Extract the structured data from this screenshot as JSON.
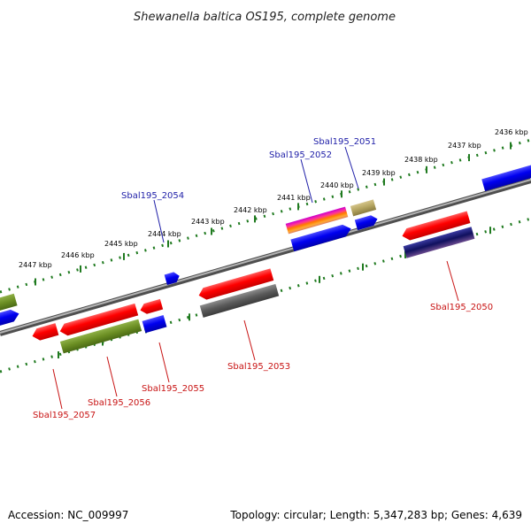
{
  "title": "Shewanella baltica OS195, complete genome",
  "footer": {
    "accession": "Accession: NC_009997",
    "summary": "Topology: circular; Length: 5,347,283 bp; Genes: 4,639"
  },
  "colors": {
    "backbone": "#7a7a7a",
    "ruler_dots": "#1f7a1f",
    "forward_label": "#1f1fa8",
    "reverse_label": "#c81414"
  },
  "ruler_labels": [
    {
      "kbp": 2436,
      "text": "2436 kbp"
    },
    {
      "kbp": 2437,
      "text": "2437 kbp"
    },
    {
      "kbp": 2438,
      "text": "2438 kbp"
    },
    {
      "kbp": 2439,
      "text": "2439 kbp"
    },
    {
      "kbp": 2440,
      "text": "2440 kbp"
    },
    {
      "kbp": 2441,
      "text": "2441 kbp"
    },
    {
      "kbp": 2442,
      "text": "2442 kbp"
    },
    {
      "kbp": 2443,
      "text": "2443 kbp"
    },
    {
      "kbp": 2444,
      "text": "2444 kbp"
    },
    {
      "kbp": 2445,
      "text": "2445 kbp"
    },
    {
      "kbp": 2446,
      "text": "2446 kbp"
    },
    {
      "kbp": 2447,
      "text": "2447 kbp"
    }
  ],
  "gene_labels": {
    "forward": [
      "Sbal195_2051",
      "Sbal195_2052",
      "Sbal195_2054"
    ],
    "reverse": [
      "Sbal195_2050",
      "Sbal195_2053",
      "Sbal195_2055",
      "Sbal195_2056",
      "Sbal195_2057"
    ]
  }
}
